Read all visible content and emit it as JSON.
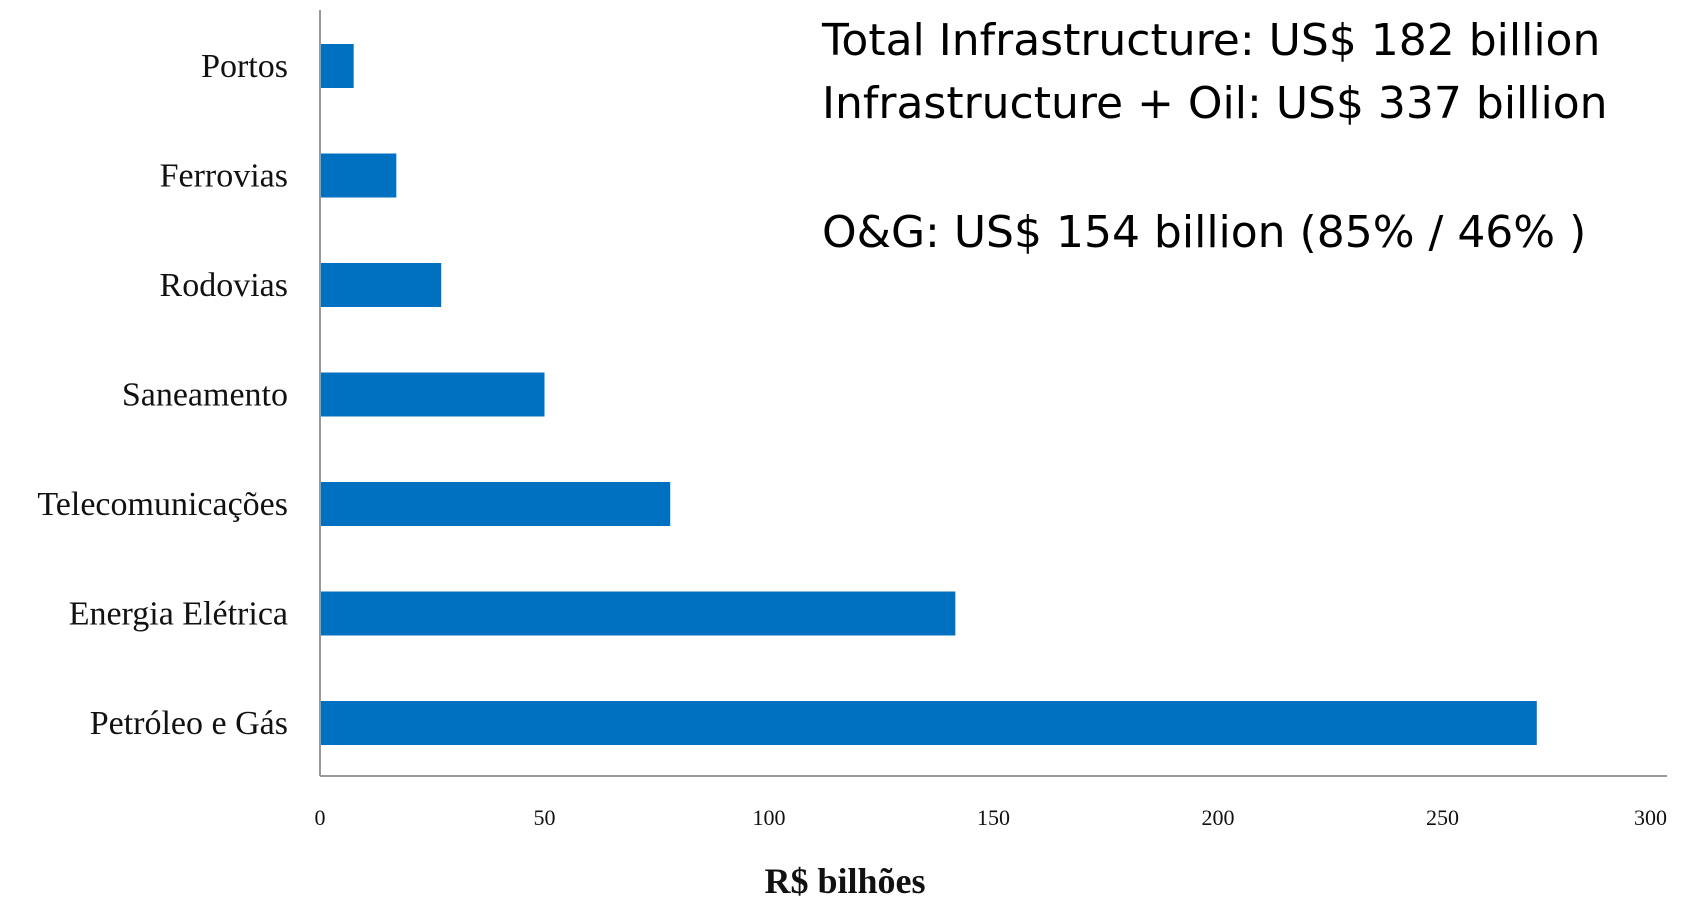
{
  "chart_data": {
    "type": "bar",
    "orientation": "horizontal",
    "categories": [
      "Portos",
      "Ferrovias",
      "Rodovias",
      "Saneamento",
      "Telecomunicações",
      "Energia Elétrica",
      "Petróleo e Gás"
    ],
    "values": [
      7.5,
      17,
      27,
      50,
      78,
      141.5,
      271
    ],
    "title": "",
    "xlabel": "R$ bilhões",
    "ylabel": "",
    "xlim": [
      0,
      300
    ],
    "x_ticks": [
      "0",
      "50",
      "100",
      "150",
      "200",
      "250",
      "300"
    ],
    "bar_color": "#0070C0",
    "grid": false,
    "legend": "none",
    "annotations": [
      "Total Infrastructure: US$ 182 billion",
      "Infrastructure + Oil: US$ 337 billion",
      "O&G:  US$ 154 billion (85% / 46% )"
    ]
  }
}
